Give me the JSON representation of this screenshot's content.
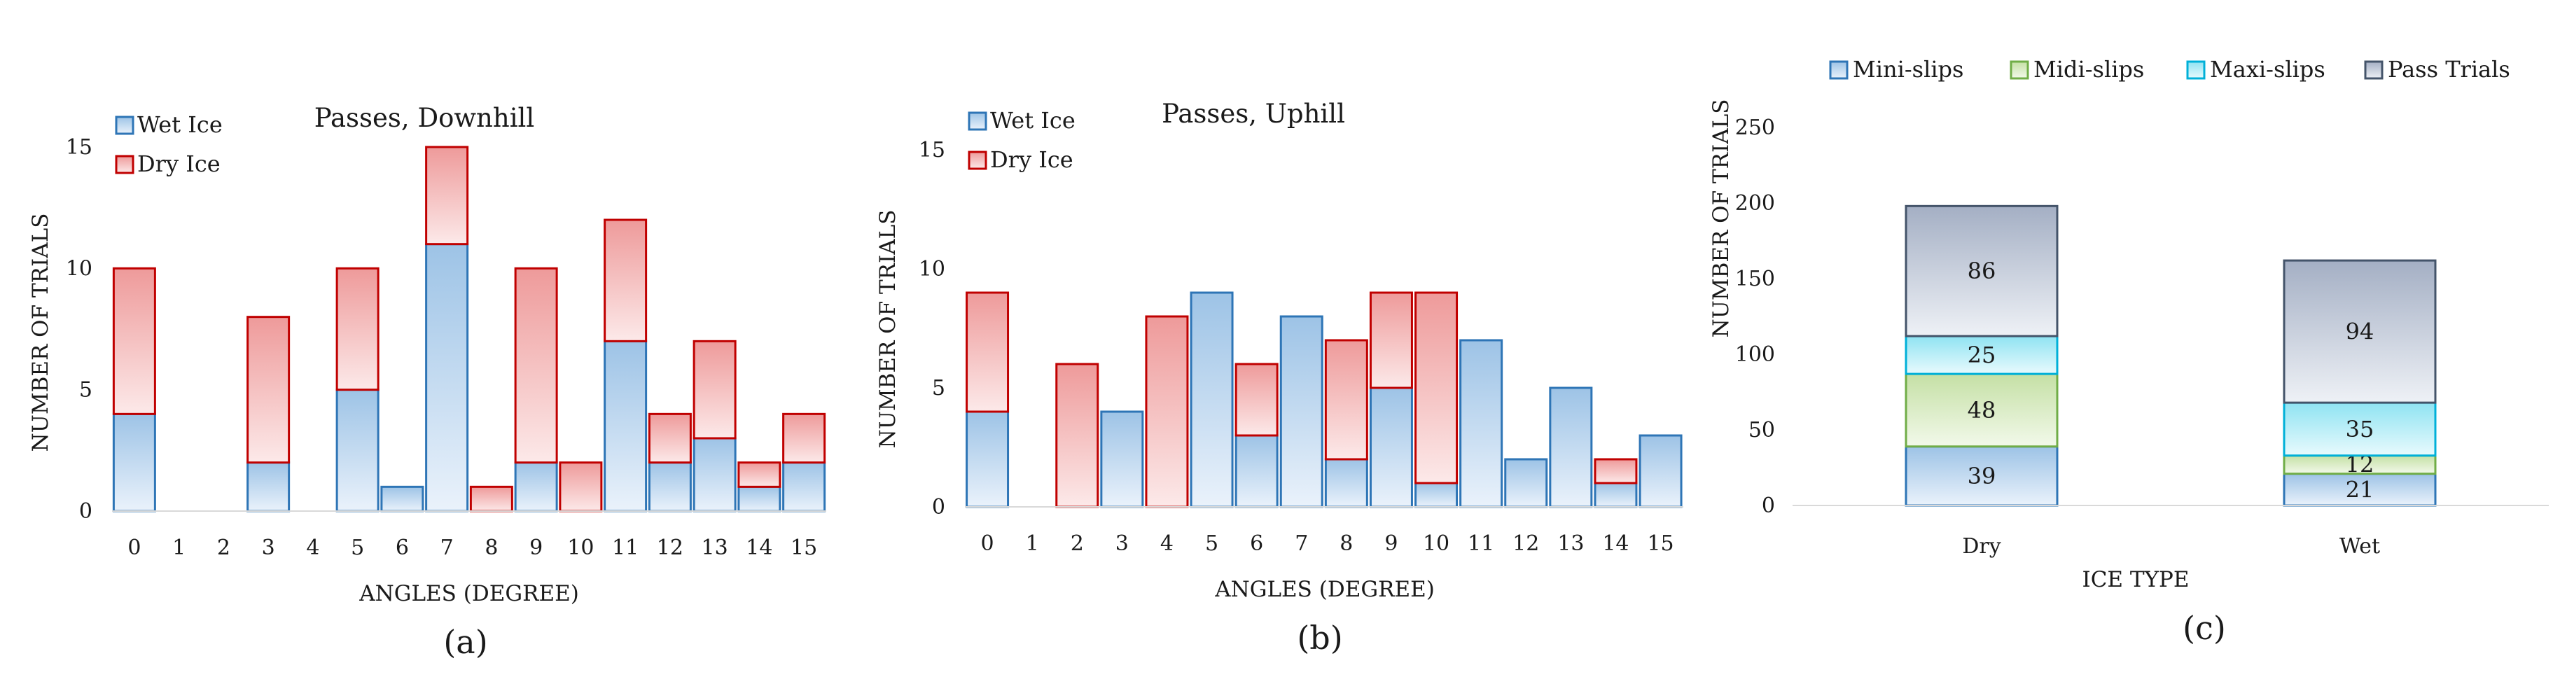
{
  "colors": {
    "wet": "#2E75B6",
    "dry": "#C00000",
    "wet_fill": "#BDD7EE",
    "dry_fill": "#F4B6B6",
    "mini": "#2E75B6",
    "midi": "#70AD47",
    "maxi": "#00B0D8",
    "pass": "#44546A"
  },
  "chart_data": [
    {
      "type": "bar",
      "stacked": true,
      "title": "Passes, Downhill",
      "caption": "(a)",
      "xlabel": "ANGLES (DEGREE)",
      "ylabel": "NUMBER OF TRIALS",
      "ylim": [
        0,
        15
      ],
      "yticks": [
        0,
        5,
        10,
        15
      ],
      "categories": [
        "0",
        "1",
        "2",
        "3",
        "4",
        "5",
        "6",
        "7",
        "8",
        "9",
        "10",
        "11",
        "12",
        "13",
        "14",
        "15"
      ],
      "legend": "top-left",
      "series": [
        {
          "name": "Wet Ice",
          "values": [
            4,
            0,
            0,
            2,
            0,
            5,
            1,
            11,
            0,
            2,
            0,
            7,
            2,
            3,
            1,
            2
          ]
        },
        {
          "name": "Dry Ice",
          "values": [
            6,
            0,
            0,
            6,
            0,
            5,
            0,
            4,
            1,
            8,
            2,
            5,
            2,
            4,
            1,
            2
          ]
        }
      ]
    },
    {
      "type": "bar",
      "stacked": true,
      "title": "Passes, Uphill",
      "caption": "(b)",
      "xlabel": "ANGLES (DEGREE)",
      "ylabel": "NUMBER OF TRIALS",
      "ylim": [
        0,
        15
      ],
      "yticks": [
        0,
        5,
        10,
        15
      ],
      "categories": [
        "0",
        "1",
        "2",
        "3",
        "4",
        "5",
        "6",
        "7",
        "8",
        "9",
        "10",
        "11",
        "12",
        "13",
        "14",
        "15"
      ],
      "legend": "top-left",
      "series": [
        {
          "name": "Wet Ice",
          "values": [
            4,
            0,
            0,
            4,
            0,
            9,
            3,
            8,
            2,
            5,
            1,
            7,
            2,
            5,
            1,
            3
          ]
        },
        {
          "name": "Dry Ice",
          "values": [
            5,
            0,
            6,
            0,
            8,
            0,
            3,
            0,
            5,
            4,
            8,
            0,
            0,
            0,
            1,
            0
          ]
        }
      ]
    },
    {
      "type": "bar",
      "stacked": true,
      "title": "",
      "caption": "(c)",
      "xlabel": "ICE TYPE",
      "ylabel": "NUMBER OF TRIALS",
      "ylim": [
        0,
        250
      ],
      "yticks": [
        0,
        50,
        100,
        150,
        200,
        250
      ],
      "categories": [
        "Dry",
        "Wet"
      ],
      "legend": "top",
      "series": [
        {
          "name": "Mini-slips",
          "values": [
            39,
            21
          ]
        },
        {
          "name": "Midi-slips",
          "values": [
            48,
            12
          ]
        },
        {
          "name": "Maxi-slips",
          "values": [
            25,
            35
          ]
        },
        {
          "name": "Pass Trials",
          "values": [
            86,
            94
          ]
        }
      ]
    }
  ]
}
